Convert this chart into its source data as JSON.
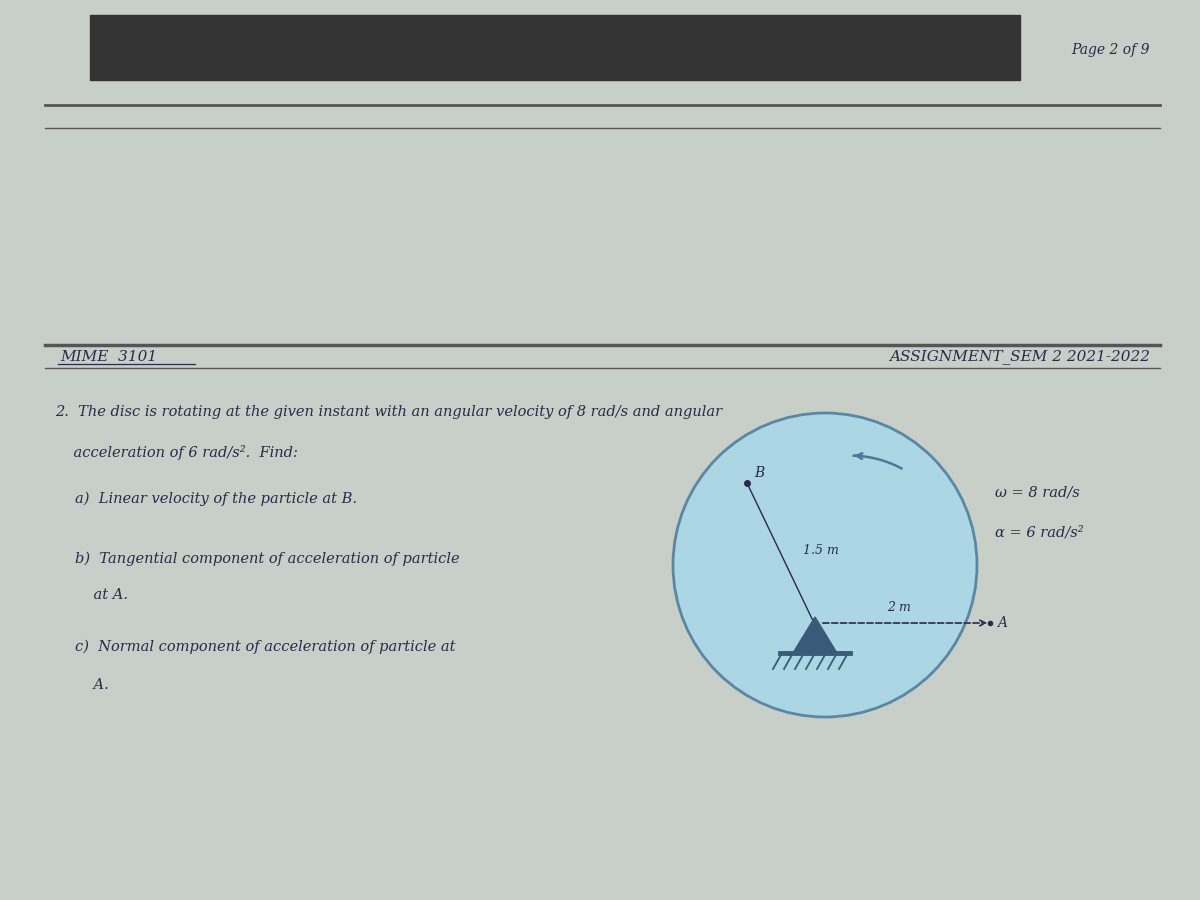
{
  "page_header": "Page 2 of 9",
  "course_code": "MIME  3101",
  "assignment_title": "ASSIGNMENT_SEM 2 2021-2022",
  "omega_label": "ω = 8 rad/s",
  "alpha_label": "α = 6 rad/s²",
  "radius_B_label": "1.5 m",
  "radius_A_label": "2 m",
  "point_B": "B",
  "point_A": "A",
  "bg_color": "#c8cfc8",
  "disc_color": "#a8d8e8",
  "disc_edge_color": "#4a7a9b",
  "text_color": "#2a2a4a",
  "header_top_bg": "#333333",
  "separator_color": "#555555",
  "pivot_color": "#3a5a7a",
  "q_line1": "2.  The disc is rotating at the given instant with an angular velocity of 8 rad/s and angular",
  "q_line2": "    acceleration of 6 rad/s².  Find:",
  "part_a": "a)  Linear velocity of the particle at B.",
  "part_b1": "b)  Tangential component of acceleration of particle",
  "part_b2": "    at A.",
  "part_c1": "c)  Normal component of acceleration of particle at",
  "part_c2": "    A."
}
